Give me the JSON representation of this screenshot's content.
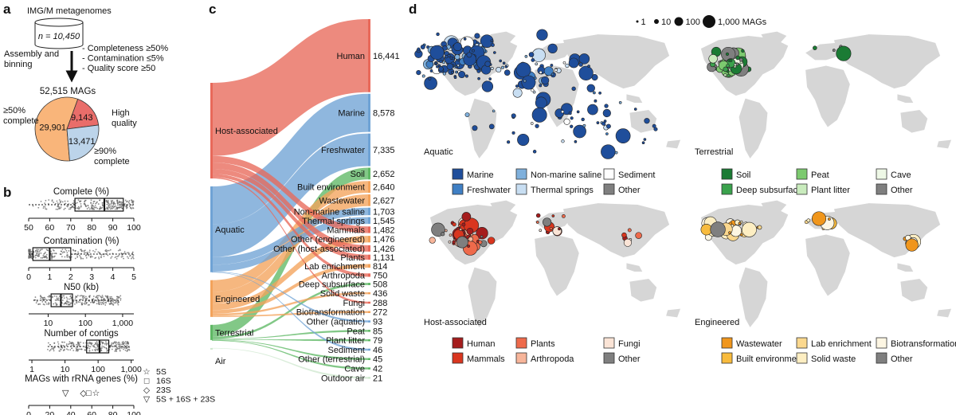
{
  "panels": {
    "a": "a",
    "b": "b",
    "c": "c",
    "d": "d"
  },
  "panel_a": {
    "source": "IMG/M metagenomes",
    "n_label": "n = 10,450",
    "step": [
      "Assembly and",
      "binning"
    ],
    "criteria": [
      "- Completeness ≥50%",
      "- Contamination ≤5%",
      "- Quality score ≥50"
    ],
    "total": "52,515 MAGs",
    "labels": {
      "medium": [
        "≥50%",
        "complete"
      ],
      "high": [
        "High",
        "quality"
      ],
      "ninety": [
        "≥90%",
        "complete"
      ]
    },
    "colors": {
      "medium": "#f9b57a",
      "high": "#e96d6a",
      "ninety": "#bcd4ea"
    },
    "chart_data": {
      "type": "pie",
      "categories": [
        "≥50% complete",
        "High quality",
        "≥90% complete"
      ],
      "values": [
        29901,
        9143,
        13471
      ],
      "labels": [
        "29,901",
        "9,143",
        "13,471"
      ]
    }
  },
  "panel_b": {
    "chart_data": [
      {
        "type": "box",
        "title": "Complete (%)",
        "ticks": [
          "50",
          "60",
          "70",
          "80",
          "90",
          "100"
        ],
        "xlim": [
          50,
          100
        ],
        "q1": 72,
        "median": 86,
        "q3": 95,
        "whisker_low": 50,
        "whisker_high": 100
      },
      {
        "type": "box",
        "title": "Contamination (%)",
        "ticks": [
          "0",
          "1",
          "2",
          "3",
          "4",
          "5"
        ],
        "xlim": [
          0,
          5
        ],
        "q1": 0.2,
        "median": 1.0,
        "q3": 2.0,
        "whisker_low": 0,
        "whisker_high": 5
      },
      {
        "type": "box",
        "title": "N50 (kb)",
        "scale": "log",
        "ticks": [
          "10",
          "100",
          "1,000"
        ],
        "xlim": [
          3,
          2000
        ],
        "q1": 12,
        "median": 22,
        "q3": 45,
        "whisker_low": 4,
        "whisker_high": 900
      },
      {
        "type": "box",
        "title": "Number of contigs",
        "scale": "log",
        "ticks": [
          "1",
          "10",
          "100",
          "1,000"
        ],
        "xlim": [
          0.8,
          1200
        ],
        "q1": 45,
        "median": 110,
        "q3": 210,
        "whisker_low": 3,
        "whisker_high": 900
      },
      {
        "type": "scatter",
        "title": "MAGs with rRNA genes (%)",
        "ticks": [
          "0",
          "20",
          "40",
          "60",
          "80",
          "100"
        ],
        "xlim": [
          0,
          100
        ],
        "series": [
          {
            "name": "5S",
            "symbol": "star",
            "value": 64
          },
          {
            "name": "16S",
            "symbol": "square",
            "value": 57
          },
          {
            "name": "23S",
            "symbol": "diamond",
            "value": 52
          },
          {
            "name": "5S + 16S + 23S",
            "symbol": "triangle",
            "value": 35
          }
        ]
      }
    ]
  },
  "panel_c": {
    "chart_data": {
      "type": "sankey",
      "sources": [
        {
          "name": "Host-associated",
          "color": "#e8695a"
        },
        {
          "name": "Aquatic",
          "color": "#6fa3d5"
        },
        {
          "name": "Engineered",
          "color": "#f3a35b"
        },
        {
          "name": "Terrestrial",
          "color": "#5fb865"
        },
        {
          "name": "Air",
          "color": "#cfe8cf"
        }
      ],
      "targets": [
        {
          "name": "Human",
          "label": "16,441",
          "value": 16441,
          "source": "Host-associated"
        },
        {
          "name": "Marine",
          "label": "8,578",
          "value": 8578,
          "source": "Aquatic"
        },
        {
          "name": "Freshwater",
          "label": "7,335",
          "value": 7335,
          "source": "Aquatic"
        },
        {
          "name": "Soil",
          "label": "2,652",
          "value": 2652,
          "source": "Terrestrial"
        },
        {
          "name": "Built environment",
          "label": "2,640",
          "value": 2640,
          "source": "Engineered"
        },
        {
          "name": "Wastewater",
          "label": "2,627",
          "value": 2627,
          "source": "Engineered"
        },
        {
          "name": "Non-marine saline",
          "label": "1,703",
          "value": 1703,
          "source": "Aquatic"
        },
        {
          "name": "Thermal springs",
          "label": "1,545",
          "value": 1545,
          "source": "Aquatic"
        },
        {
          "name": "Mammals",
          "label": "1,482",
          "value": 1482,
          "source": "Host-associated"
        },
        {
          "name": "Other (engineered)",
          "label": "1,476",
          "value": 1476,
          "source": "Engineered"
        },
        {
          "name": "Other (host-associated)",
          "label": "1,426",
          "value": 1426,
          "source": "Host-associated"
        },
        {
          "name": "Plants",
          "label": "1,131",
          "value": 1131,
          "source": "Host-associated"
        },
        {
          "name": "Lab enrichment",
          "label": "814",
          "value": 814,
          "source": "Engineered"
        },
        {
          "name": "Arthropoda",
          "label": "750",
          "value": 750,
          "source": "Host-associated"
        },
        {
          "name": "Deep subsurface",
          "label": "508",
          "value": 508,
          "source": "Terrestrial"
        },
        {
          "name": "Solid waste",
          "label": "436",
          "value": 436,
          "source": "Engineered"
        },
        {
          "name": "Fungi",
          "label": "288",
          "value": 288,
          "source": "Host-associated"
        },
        {
          "name": "Biotransformation",
          "label": "272",
          "value": 272,
          "source": "Engineered"
        },
        {
          "name": "Other (aquatic)",
          "label": "93",
          "value": 93,
          "source": "Aquatic"
        },
        {
          "name": "Peat",
          "label": "85",
          "value": 85,
          "source": "Terrestrial"
        },
        {
          "name": "Plant litter",
          "label": "79",
          "value": 79,
          "source": "Terrestrial"
        },
        {
          "name": "Sediment",
          "label": "46",
          "value": 46,
          "source": "Aquatic"
        },
        {
          "name": "Other (terrestrial)",
          "label": "45",
          "value": 45,
          "source": "Terrestrial"
        },
        {
          "name": "Cave",
          "label": "42",
          "value": 42,
          "source": "Terrestrial"
        },
        {
          "name": "Outdoor air",
          "label": "21",
          "value": 21,
          "source": "Air"
        }
      ]
    }
  },
  "panel_d": {
    "size_legend": [
      "1",
      "10",
      "100",
      "1,000 MAGs"
    ],
    "maps": [
      {
        "title": "Aquatic",
        "legend": [
          {
            "label": "Marine",
            "color": "#1f4e9b"
          },
          {
            "label": "Non-marine saline",
            "color": "#7fb0dc"
          },
          {
            "label": "Sediment",
            "color": "#ffffff"
          },
          {
            "label": "Freshwater",
            "color": "#3f7fc4"
          },
          {
            "label": "Thermal springs",
            "color": "#c8def2"
          },
          {
            "label": "Other",
            "color": "#7f7f7f"
          }
        ]
      },
      {
        "title": "Terrestrial",
        "legend": [
          {
            "label": "Soil",
            "color": "#1b7b34"
          },
          {
            "label": "Peat",
            "color": "#7cca6f"
          },
          {
            "label": "Cave",
            "color": "#eef8e6"
          },
          {
            "label": "Deep subsurface",
            "color": "#3aa24c"
          },
          {
            "label": "Plant litter",
            "color": "#c9ebbd"
          },
          {
            "label": "Other",
            "color": "#7f7f7f"
          }
        ]
      },
      {
        "title": "Host-associated",
        "legend": [
          {
            "label": "Human",
            "color": "#a51d1d"
          },
          {
            "label": "Plants",
            "color": "#ee6a4b"
          },
          {
            "label": "Fungi",
            "color": "#fbe4d6"
          },
          {
            "label": "Mammals",
            "color": "#d9361f"
          },
          {
            "label": "Arthropoda",
            "color": "#f7b59a"
          },
          {
            "label": "Other",
            "color": "#7f7f7f"
          }
        ]
      },
      {
        "title": "Engineered",
        "legend": [
          {
            "label": "Wastewater",
            "color": "#f0961c"
          },
          {
            "label": "Lab enrichment",
            "color": "#fbd88e"
          },
          {
            "label": "Biotransformation",
            "color": "#fdf6e3"
          },
          {
            "label": "Built environment",
            "color": "#f8bb3d"
          },
          {
            "label": "Solid waste",
            "color": "#fdeec2"
          },
          {
            "label": "Other",
            "color": "#7f7f7f"
          }
        ]
      }
    ],
    "land_color": "#d6d6d6"
  }
}
